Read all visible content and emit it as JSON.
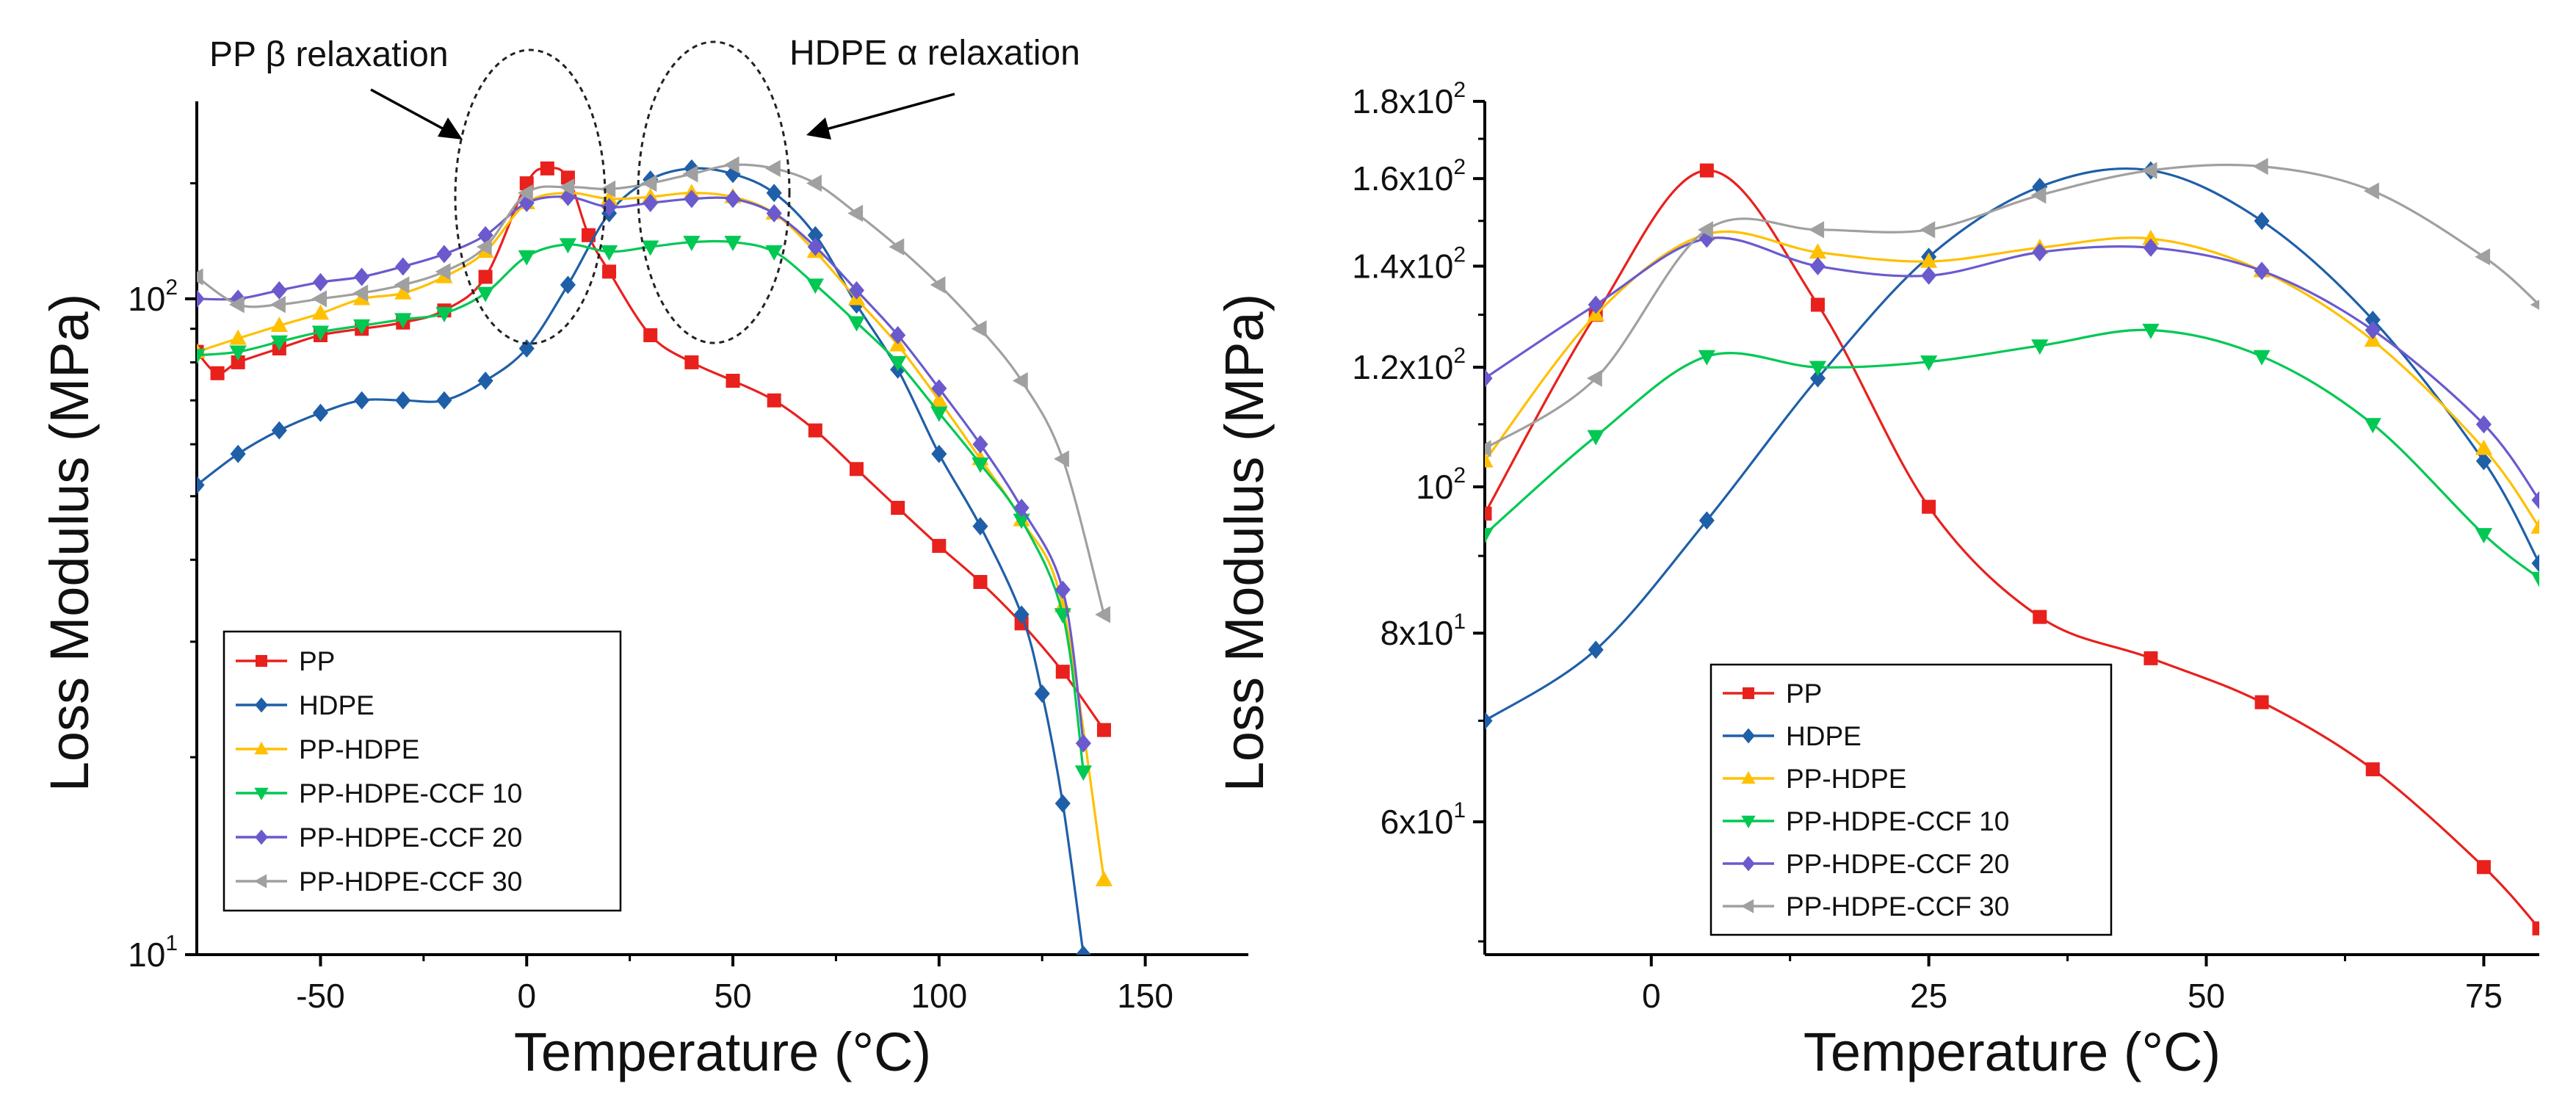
{
  "chart_data": [
    {
      "type": "line",
      "title": "",
      "xlabel": "Temperature (°C)",
      "ylabel": "Loss Modulus (MPa)",
      "xlim": [
        -80,
        175
      ],
      "ylim": [
        10,
        200
      ],
      "yscale": "log",
      "xticks": [
        -50,
        0,
        50,
        100,
        150
      ],
      "xtick_labels": [
        "-50",
        "0",
        "50",
        "100",
        "150"
      ],
      "yticks": [
        {
          "value": 10,
          "base": "10",
          "exp": "1"
        },
        {
          "value": 100,
          "base": "10",
          "exp": "2"
        }
      ],
      "legend": "bottom-left",
      "annotations": [
        {
          "text": "PP β relaxation",
          "points_to_x": 0
        },
        {
          "text": "HDPE α relaxation",
          "points_to_x": 45
        }
      ],
      "series": [
        {
          "name": "PP",
          "color": "#E8211D",
          "marker": "square",
          "x": [
            -80,
            -75,
            -70,
            -60,
            -50,
            -40,
            -30,
            -20,
            -10,
            0,
            5,
            10,
            15,
            20,
            30,
            40,
            50,
            60,
            70,
            80,
            90,
            100,
            110,
            120,
            130,
            140
          ],
          "y": [
            83,
            77,
            80,
            84,
            88,
            90,
            92,
            96,
            108,
            150,
            158,
            153,
            125,
            110,
            88,
            80,
            75,
            70,
            63,
            55,
            48,
            42,
            37,
            32,
            27,
            22
          ]
        },
        {
          "name": "HDPE",
          "color": "#1F5FA8",
          "marker": "diamond",
          "x": [
            -80,
            -70,
            -60,
            -50,
            -40,
            -30,
            -20,
            -10,
            0,
            10,
            20,
            30,
            40,
            50,
            60,
            70,
            80,
            90,
            100,
            110,
            120,
            125,
            130,
            135
          ],
          "y": [
            52,
            58,
            63,
            67,
            70,
            70,
            70,
            75,
            84,
            105,
            135,
            152,
            158,
            155,
            145,
            125,
            98,
            78,
            58,
            45,
            33,
            25,
            17,
            10
          ]
        },
        {
          "name": "PP-HDPE",
          "color": "#FFC000",
          "marker": "triangle-up",
          "x": [
            -80,
            -70,
            -60,
            -50,
            -40,
            -30,
            -20,
            -10,
            0,
            10,
            20,
            30,
            40,
            50,
            60,
            70,
            80,
            90,
            100,
            110,
            120,
            130,
            140
          ],
          "y": [
            83,
            87,
            91,
            95,
            100,
            102,
            108,
            118,
            140,
            145,
            142,
            143,
            145,
            143,
            135,
            118,
            100,
            85,
            70,
            57,
            46,
            34,
            13
          ]
        },
        {
          "name": "PP-HDPE-CCF 10",
          "color": "#00C853",
          "marker": "triangle-down",
          "x": [
            -80,
            -70,
            -60,
            -50,
            -40,
            -30,
            -20,
            -10,
            0,
            10,
            20,
            30,
            40,
            50,
            60,
            70,
            80,
            90,
            100,
            110,
            120,
            130,
            135
          ],
          "y": [
            82,
            83,
            86,
            89,
            91,
            93,
            95,
            102,
            116,
            121,
            118,
            120,
            122,
            122,
            118,
            105,
            92,
            80,
            67,
            56,
            46,
            33,
            19
          ]
        },
        {
          "name": "PP-HDPE-CCF 20",
          "color": "#6A5ACD",
          "marker": "diamond",
          "x": [
            -80,
            -70,
            -60,
            -50,
            -40,
            -30,
            -20,
            -10,
            0,
            10,
            20,
            30,
            40,
            50,
            60,
            70,
            80,
            90,
            100,
            110,
            120,
            130,
            135
          ],
          "y": [
            100,
            100,
            103,
            106,
            108,
            112,
            117,
            125,
            140,
            143,
            138,
            140,
            142,
            142,
            135,
            120,
            103,
            88,
            73,
            60,
            48,
            36,
            21
          ]
        },
        {
          "name": "PP-HDPE-CCF 30",
          "color": "#A0A0A0",
          "marker": "triangle-left",
          "x": [
            -80,
            -70,
            -60,
            -50,
            -40,
            -30,
            -20,
            -10,
            0,
            10,
            20,
            30,
            40,
            50,
            60,
            70,
            80,
            90,
            100,
            110,
            120,
            130,
            140
          ],
          "y": [
            108,
            98,
            98,
            100,
            102,
            105,
            110,
            120,
            145,
            148,
            147,
            150,
            155,
            160,
            158,
            150,
            135,
            120,
            105,
            90,
            75,
            57,
            33
          ]
        }
      ]
    },
    {
      "type": "line",
      "title": "",
      "xlabel": "Temperature (°C)",
      "ylabel": "Loss Modulus (MPa)",
      "xlim": [
        -15,
        80
      ],
      "ylim": [
        49,
        180
      ],
      "yscale": "log",
      "xticks": [
        0,
        25,
        50,
        75
      ],
      "xtick_labels": [
        "0",
        "25",
        "50",
        "75"
      ],
      "yticks": [
        {
          "value": 60,
          "base": "6x10",
          "exp": "1"
        },
        {
          "value": 80,
          "base": "8x10",
          "exp": "1"
        },
        {
          "value": 100,
          "base": "10",
          "exp": "2"
        },
        {
          "value": 120,
          "base": "1.2x10",
          "exp": "2"
        },
        {
          "value": 140,
          "base": "1.4x10",
          "exp": "2"
        },
        {
          "value": 160,
          "base": "1.6x10",
          "exp": "2"
        },
        {
          "value": 180,
          "base": "1.8x10",
          "exp": "2"
        }
      ],
      "legend": "bottom-center",
      "series": [
        {
          "name": "PP",
          "color": "#E8211D",
          "marker": "square",
          "x": [
            -15,
            -5,
            5,
            15,
            25,
            35,
            45,
            55,
            65,
            75,
            80
          ],
          "y": [
            96,
            130,
            162,
            132,
            97,
            82,
            77,
            72,
            65,
            56,
            51
          ]
        },
        {
          "name": "HDPE",
          "color": "#1F5FA8",
          "marker": "diamond",
          "x": [
            -15,
            -5,
            5,
            15,
            25,
            35,
            45,
            55,
            65,
            75,
            80
          ],
          "y": [
            70,
            78,
            95,
            118,
            142,
            158,
            162,
            150,
            129,
            104,
            89
          ]
        },
        {
          "name": "PP-HDPE",
          "color": "#FFC000",
          "marker": "triangle-up",
          "x": [
            -15,
            -5,
            5,
            15,
            25,
            35,
            45,
            55,
            65,
            75,
            80
          ],
          "y": [
            104,
            130,
            147,
            143,
            141,
            144,
            146,
            139,
            125,
            106,
            94
          ]
        },
        {
          "name": "PP-HDPE-CCF 10",
          "color": "#00C853",
          "marker": "triangle-down",
          "x": [
            -15,
            -5,
            5,
            15,
            25,
            35,
            45,
            55,
            65,
            75,
            80
          ],
          "y": [
            93,
            108,
            122,
            120,
            121,
            124,
            127,
            122,
            110,
            93,
            87
          ]
        },
        {
          "name": "PP-HDPE-CCF 20",
          "color": "#6A5ACD",
          "marker": "diamond",
          "x": [
            -15,
            -5,
            5,
            15,
            25,
            35,
            45,
            55,
            65,
            75,
            80
          ],
          "y": [
            118,
            132,
            146,
            140,
            138,
            143,
            144,
            139,
            127,
            110,
            98
          ]
        },
        {
          "name": "PP-HDPE-CCF 30",
          "color": "#A0A0A0",
          "marker": "triangle-left",
          "x": [
            -15,
            -5,
            5,
            15,
            25,
            35,
            45,
            55,
            65,
            75,
            80
          ],
          "y": [
            106,
            118,
            148,
            148,
            148,
            156,
            162,
            163,
            157,
            142,
            132
          ]
        }
      ]
    }
  ]
}
